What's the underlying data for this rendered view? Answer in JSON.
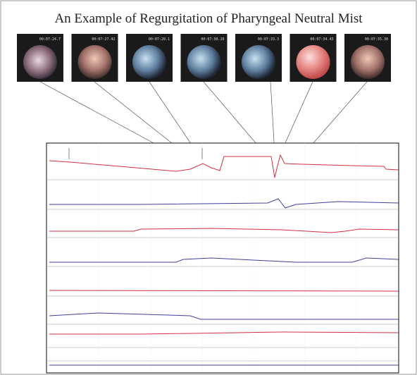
{
  "header": {
    "title": "An Example of Regurgitation of Pharyngeal Neutral Mist"
  },
  "thumbnails": [
    {
      "label": "00:07:24.7"
    },
    {
      "label": "00:07:27.42"
    },
    {
      "label": "00:07:28.1"
    },
    {
      "label": "00:07:30.10"
    },
    {
      "label": "00:07:33.3"
    },
    {
      "label": "00:07:34.43"
    },
    {
      "label": "00:07:35.30"
    }
  ]
}
